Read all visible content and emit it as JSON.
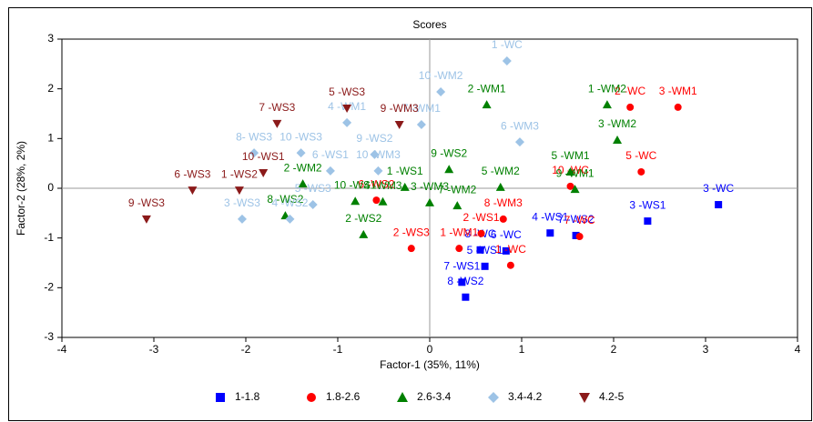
{
  "chart_data": {
    "type": "scatter",
    "title": "Scores",
    "x_label": "Factor-1 (35%, 11%)",
    "y_label": "Factor-2 (28%, 2%)",
    "xlim": [
      -4,
      4
    ],
    "xticks": [
      -4,
      -3,
      -2,
      -1,
      0,
      1,
      2,
      3,
      4
    ],
    "ylim": [
      -3,
      3
    ],
    "yticks": [
      -3,
      -2,
      -1,
      0,
      1,
      2,
      3
    ],
    "legend": "bottom",
    "series": [
      {
        "name": "1-1.8",
        "color": "#0000ff",
        "marker": "square",
        "x": [
          3.14,
          2.37,
          1.31,
          1.59,
          0.83,
          0.55,
          0.6,
          0.35,
          0.39
        ],
        "values": [
          -0.33,
          -0.66,
          -0.9,
          -0.95,
          -1.26,
          -1.24,
          -1.57,
          -1.89,
          -2.19
        ],
        "labels": [
          "3 -WC",
          "3 -WS1",
          "4 -WS1",
          "7 -WS2",
          "6 -WC",
          "8 -WC",
          "5 -WS1",
          "7 -WS1",
          "8 -WS2"
        ]
      },
      {
        "name": "1.8-2.6",
        "color": "#ff0000",
        "marker": "circle",
        "x": [
          2.7,
          2.18,
          2.3,
          1.53,
          1.63,
          0.8,
          0.56,
          0.32,
          -0.2,
          0.88,
          -0.58
        ],
        "values": [
          1.63,
          1.63,
          0.33,
          0.04,
          -0.97,
          -0.62,
          -0.91,
          -1.21,
          -1.21,
          -1.55,
          -0.24
        ],
        "labels": [
          "3 -WM1",
          "2 -WC",
          "5 -WC",
          "10 -WC",
          "7 -WC",
          "8 -WM3",
          "2 -WS1",
          "1 -WM1",
          "2 -WS3",
          "1 -WC",
          "6 -WS2"
        ]
      },
      {
        "name": "2.6-3.4",
        "color": "#008000",
        "marker": "triangle",
        "x": [
          1.93,
          0.62,
          2.04,
          1.53,
          1.58,
          0.21,
          0.77,
          -0.27,
          0.3,
          0.0,
          -0.51,
          -0.81,
          -1.38,
          -1.57,
          -0.72
        ],
        "values": [
          1.68,
          1.68,
          0.97,
          0.33,
          -0.02,
          0.38,
          0.02,
          0.02,
          -0.35,
          -0.29,
          -0.27,
          -0.26,
          0.09,
          -0.55,
          -0.93
        ],
        "labels": [
          "1 -WM2",
          "2 -WM1",
          "3 -WM2",
          "5 -WM1",
          "9 -WM1",
          "9 -WS2",
          "5 -WM2",
          "1 -WS1",
          "7 -WM2",
          "3 -WM3",
          "4 -WM3",
          "10 -WS1",
          "2 -WM2",
          "8 -WS2",
          "2 -WS2"
        ]
      },
      {
        "name": "3.4-4.2",
        "color": "#9dc3e6",
        "marker": "diamond",
        "x": [
          0.84,
          0.12,
          0.98,
          -0.9,
          -0.09,
          -1.4,
          -1.91,
          -0.6,
          -0.56,
          -1.08,
          -2.04,
          -1.27,
          -1.52
        ],
        "values": [
          2.56,
          1.94,
          0.93,
          1.32,
          1.28,
          0.71,
          0.71,
          0.68,
          0.35,
          0.35,
          -0.62,
          -0.33,
          -0.62
        ],
        "labels": [
          "1 -WC",
          "10 -WM2",
          "6 -WM3",
          "4 -WM1",
          "7 -WM1",
          "10 -WS3",
          "8- WS3",
          "9 -WS2",
          "10 -WM3",
          "6 -WS1",
          "3 -WS3",
          "5 -WS3",
          "4 -WS2"
        ]
      },
      {
        "name": "4.2-5",
        "color": "#8b1a1a",
        "marker": "down",
        "x": [
          -3.08,
          -2.58,
          -2.07,
          -1.81,
          -1.66,
          -0.9,
          -0.33
        ],
        "values": [
          -0.62,
          -0.04,
          -0.04,
          0.31,
          1.3,
          1.61,
          1.28
        ],
        "labels": [
          "9 -WS3",
          "6 -WS3",
          "1 -WS2",
          "10 -WS1",
          "7 -WS3",
          "5 -WS3",
          "9 -WM3"
        ]
      }
    ]
  }
}
